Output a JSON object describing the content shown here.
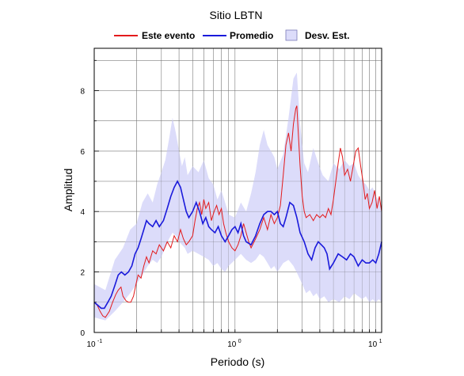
{
  "chart_data": {
    "type": "line",
    "title": "Sitio LBTN",
    "xlabel": "Periodo (s)",
    "ylabel": "Amplitud",
    "xscale": "log",
    "xlim": [
      0.1,
      11
    ],
    "ylim": [
      0,
      9.4
    ],
    "grid": true,
    "legend_position": "top",
    "x_tick_base": "10",
    "x_tick_labels": [
      {
        "value": 0.1,
        "exp": "-1"
      },
      {
        "value": 1,
        "exp": "0"
      },
      {
        "value": 10,
        "exp": "1"
      }
    ],
    "y_tick_labels": [
      {
        "value": 0,
        "label": "0"
      },
      {
        "value": 2,
        "label": "2"
      },
      {
        "value": 4,
        "label": "4"
      },
      {
        "value": 6,
        "label": "6"
      },
      {
        "value": 8,
        "label": "8"
      }
    ],
    "series": [
      {
        "name": "Este evento",
        "color": "#e31a1c",
        "points": [
          [
            0.1,
            1.0
          ],
          [
            0.105,
            0.9
          ],
          [
            0.11,
            0.7
          ],
          [
            0.115,
            0.55
          ],
          [
            0.12,
            0.5
          ],
          [
            0.128,
            0.7
          ],
          [
            0.135,
            1.0
          ],
          [
            0.142,
            1.25
          ],
          [
            0.148,
            1.4
          ],
          [
            0.155,
            1.5
          ],
          [
            0.16,
            1.2
          ],
          [
            0.168,
            1.05
          ],
          [
            0.175,
            1.0
          ],
          [
            0.182,
            1.0
          ],
          [
            0.19,
            1.2
          ],
          [
            0.198,
            1.6
          ],
          [
            0.205,
            1.9
          ],
          [
            0.215,
            1.8
          ],
          [
            0.225,
            2.2
          ],
          [
            0.235,
            2.5
          ],
          [
            0.245,
            2.3
          ],
          [
            0.26,
            2.7
          ],
          [
            0.275,
            2.6
          ],
          [
            0.29,
            2.9
          ],
          [
            0.31,
            2.7
          ],
          [
            0.33,
            3.0
          ],
          [
            0.35,
            2.8
          ],
          [
            0.37,
            3.2
          ],
          [
            0.39,
            3.0
          ],
          [
            0.41,
            3.4
          ],
          [
            0.43,
            3.1
          ],
          [
            0.45,
            2.9
          ],
          [
            0.47,
            3.0
          ],
          [
            0.5,
            3.2
          ],
          [
            0.52,
            3.7
          ],
          [
            0.54,
            4.1
          ],
          [
            0.56,
            4.3
          ],
          [
            0.58,
            3.9
          ],
          [
            0.6,
            4.4
          ],
          [
            0.62,
            4.1
          ],
          [
            0.65,
            4.3
          ],
          [
            0.68,
            3.7
          ],
          [
            0.71,
            4.0
          ],
          [
            0.74,
            4.2
          ],
          [
            0.77,
            3.9
          ],
          [
            0.8,
            4.1
          ],
          [
            0.83,
            3.6
          ],
          [
            0.86,
            3.3
          ],
          [
            0.9,
            3.0
          ],
          [
            0.95,
            2.8
          ],
          [
            1.0,
            2.7
          ],
          [
            1.05,
            2.9
          ],
          [
            1.1,
            3.2
          ],
          [
            1.15,
            3.6
          ],
          [
            1.2,
            3.3
          ],
          [
            1.25,
            3.0
          ],
          [
            1.3,
            2.8
          ],
          [
            1.4,
            3.1
          ],
          [
            1.5,
            3.4
          ],
          [
            1.6,
            3.8
          ],
          [
            1.7,
            3.4
          ],
          [
            1.8,
            3.9
          ],
          [
            1.9,
            3.6
          ],
          [
            2.0,
            3.8
          ],
          [
            2.1,
            4.2
          ],
          [
            2.2,
            5.2
          ],
          [
            2.3,
            6.2
          ],
          [
            2.4,
            6.6
          ],
          [
            2.5,
            6.0
          ],
          [
            2.6,
            6.9
          ],
          [
            2.7,
            7.4
          ],
          [
            2.75,
            7.5
          ],
          [
            2.8,
            6.8
          ],
          [
            2.9,
            5.5
          ],
          [
            3.0,
            4.5
          ],
          [
            3.1,
            4.0
          ],
          [
            3.2,
            3.8
          ],
          [
            3.4,
            3.9
          ],
          [
            3.6,
            3.7
          ],
          [
            3.8,
            3.9
          ],
          [
            4.0,
            3.8
          ],
          [
            4.2,
            3.9
          ],
          [
            4.4,
            3.8
          ],
          [
            4.6,
            4.1
          ],
          [
            4.8,
            3.9
          ],
          [
            5.0,
            4.4
          ],
          [
            5.2,
            5.0
          ],
          [
            5.4,
            5.6
          ],
          [
            5.6,
            6.1
          ],
          [
            5.8,
            5.8
          ],
          [
            6.0,
            5.2
          ],
          [
            6.3,
            5.4
          ],
          [
            6.6,
            5.0
          ],
          [
            6.9,
            5.5
          ],
          [
            7.2,
            6.0
          ],
          [
            7.5,
            6.1
          ],
          [
            7.8,
            5.5
          ],
          [
            8.1,
            5.0
          ],
          [
            8.4,
            4.4
          ],
          [
            8.7,
            4.6
          ],
          [
            9.0,
            4.1
          ],
          [
            9.4,
            4.3
          ],
          [
            9.8,
            4.7
          ],
          [
            10.2,
            4.1
          ],
          [
            10.6,
            4.5
          ],
          [
            11.0,
            4.0
          ]
        ]
      },
      {
        "name": "Promedio",
        "color": "#1a1adb",
        "points": [
          [
            0.1,
            1.0
          ],
          [
            0.106,
            0.9
          ],
          [
            0.112,
            0.8
          ],
          [
            0.118,
            0.8
          ],
          [
            0.125,
            1.0
          ],
          [
            0.132,
            1.2
          ],
          [
            0.14,
            1.55
          ],
          [
            0.148,
            1.9
          ],
          [
            0.156,
            2.0
          ],
          [
            0.165,
            1.9
          ],
          [
            0.175,
            2.0
          ],
          [
            0.185,
            2.2
          ],
          [
            0.195,
            2.6
          ],
          [
            0.205,
            2.8
          ],
          [
            0.215,
            3.1
          ],
          [
            0.225,
            3.4
          ],
          [
            0.235,
            3.7
          ],
          [
            0.245,
            3.6
          ],
          [
            0.26,
            3.5
          ],
          [
            0.275,
            3.7
          ],
          [
            0.29,
            3.5
          ],
          [
            0.31,
            3.7
          ],
          [
            0.33,
            4.1
          ],
          [
            0.35,
            4.5
          ],
          [
            0.37,
            4.8
          ],
          [
            0.39,
            5.0
          ],
          [
            0.41,
            4.8
          ],
          [
            0.43,
            4.4
          ],
          [
            0.45,
            4.0
          ],
          [
            0.47,
            3.8
          ],
          [
            0.5,
            4.0
          ],
          [
            0.53,
            4.3
          ],
          [
            0.56,
            4.0
          ],
          [
            0.59,
            3.6
          ],
          [
            0.62,
            3.8
          ],
          [
            0.65,
            3.5
          ],
          [
            0.68,
            3.4
          ],
          [
            0.72,
            3.3
          ],
          [
            0.76,
            3.5
          ],
          [
            0.8,
            3.2
          ],
          [
            0.85,
            3.0
          ],
          [
            0.9,
            3.2
          ],
          [
            0.95,
            3.4
          ],
          [
            1.0,
            3.5
          ],
          [
            1.05,
            3.3
          ],
          [
            1.1,
            3.6
          ],
          [
            1.15,
            3.2
          ],
          [
            1.2,
            3.0
          ],
          [
            1.3,
            2.9
          ],
          [
            1.4,
            3.2
          ],
          [
            1.5,
            3.6
          ],
          [
            1.6,
            3.9
          ],
          [
            1.7,
            4.0
          ],
          [
            1.8,
            4.0
          ],
          [
            1.9,
            3.9
          ],
          [
            2.0,
            4.0
          ],
          [
            2.1,
            3.6
          ],
          [
            2.2,
            3.5
          ],
          [
            2.3,
            3.8
          ],
          [
            2.45,
            4.3
          ],
          [
            2.6,
            4.2
          ],
          [
            2.75,
            3.8
          ],
          [
            2.9,
            3.3
          ],
          [
            3.1,
            3.0
          ],
          [
            3.3,
            2.6
          ],
          [
            3.5,
            2.4
          ],
          [
            3.7,
            2.8
          ],
          [
            3.9,
            3.0
          ],
          [
            4.1,
            2.9
          ],
          [
            4.3,
            2.8
          ],
          [
            4.5,
            2.6
          ],
          [
            4.7,
            2.1
          ],
          [
            5.0,
            2.3
          ],
          [
            5.4,
            2.6
          ],
          [
            5.8,
            2.5
          ],
          [
            6.2,
            2.4
          ],
          [
            6.6,
            2.6
          ],
          [
            7.0,
            2.5
          ],
          [
            7.5,
            2.2
          ],
          [
            8.0,
            2.4
          ],
          [
            8.5,
            2.3
          ],
          [
            9.0,
            2.3
          ],
          [
            9.5,
            2.4
          ],
          [
            10.0,
            2.3
          ],
          [
            10.5,
            2.6
          ],
          [
            11.0,
            3.0
          ]
        ]
      }
    ],
    "band": {
      "name": "Desv. Est.",
      "color": "#dcdcfa",
      "upper": [
        [
          0.1,
          1.6
        ],
        [
          0.12,
          1.4
        ],
        [
          0.14,
          2.4
        ],
        [
          0.16,
          2.8
        ],
        [
          0.18,
          3.4
        ],
        [
          0.2,
          3.6
        ],
        [
          0.22,
          4.3
        ],
        [
          0.24,
          4.6
        ],
        [
          0.26,
          4.3
        ],
        [
          0.28,
          4.9
        ],
        [
          0.3,
          5.3
        ],
        [
          0.32,
          5.7
        ],
        [
          0.34,
          6.4
        ],
        [
          0.36,
          7.1
        ],
        [
          0.38,
          6.6
        ],
        [
          0.4,
          6.0
        ],
        [
          0.42,
          5.5
        ],
        [
          0.44,
          5.8
        ],
        [
          0.46,
          5.2
        ],
        [
          0.5,
          5.5
        ],
        [
          0.55,
          5.3
        ],
        [
          0.6,
          5.7
        ],
        [
          0.65,
          5.1
        ],
        [
          0.7,
          4.9
        ],
        [
          0.75,
          4.4
        ],
        [
          0.8,
          4.7
        ],
        [
          0.85,
          4.3
        ],
        [
          0.9,
          3.9
        ],
        [
          1.0,
          3.8
        ],
        [
          1.1,
          4.3
        ],
        [
          1.2,
          4.0
        ],
        [
          1.3,
          4.6
        ],
        [
          1.4,
          5.3
        ],
        [
          1.5,
          6.2
        ],
        [
          1.6,
          6.7
        ],
        [
          1.7,
          6.2
        ],
        [
          1.8,
          6.0
        ],
        [
          1.9,
          5.8
        ],
        [
          2.0,
          5.4
        ],
        [
          2.2,
          5.9
        ],
        [
          2.4,
          7.1
        ],
        [
          2.6,
          8.4
        ],
        [
          2.75,
          8.6
        ],
        [
          2.9,
          6.9
        ],
        [
          3.1,
          5.6
        ],
        [
          3.3,
          5.3
        ],
        [
          3.6,
          6.1
        ],
        [
          3.9,
          5.6
        ],
        [
          4.2,
          5.2
        ],
        [
          4.6,
          5.0
        ],
        [
          5.0,
          5.6
        ],
        [
          5.5,
          5.4
        ],
        [
          6.0,
          5.7
        ],
        [
          6.5,
          5.5
        ],
        [
          7.0,
          5.6
        ],
        [
          7.5,
          5.2
        ],
        [
          8.0,
          5.0
        ],
        [
          8.5,
          4.9
        ],
        [
          9.0,
          4.7
        ],
        [
          9.5,
          4.8
        ],
        [
          10.0,
          4.5
        ],
        [
          10.5,
          4.4
        ],
        [
          11.0,
          4.1
        ]
      ],
      "lower": [
        [
          0.1,
          0.5
        ],
        [
          0.12,
          0.4
        ],
        [
          0.14,
          0.7
        ],
        [
          0.16,
          1.0
        ],
        [
          0.18,
          1.3
        ],
        [
          0.2,
          1.6
        ],
        [
          0.22,
          1.9
        ],
        [
          0.24,
          2.2
        ],
        [
          0.26,
          2.4
        ],
        [
          0.28,
          2.3
        ],
        [
          0.3,
          2.5
        ],
        [
          0.32,
          2.8
        ],
        [
          0.34,
          3.1
        ],
        [
          0.36,
          3.3
        ],
        [
          0.38,
          3.2
        ],
        [
          0.4,
          3.0
        ],
        [
          0.42,
          2.9
        ],
        [
          0.44,
          2.8
        ],
        [
          0.46,
          2.6
        ],
        [
          0.5,
          2.7
        ],
        [
          0.55,
          2.6
        ],
        [
          0.6,
          2.5
        ],
        [
          0.65,
          2.4
        ],
        [
          0.7,
          2.2
        ],
        [
          0.75,
          2.3
        ],
        [
          0.8,
          2.1
        ],
        [
          0.85,
          2.0
        ],
        [
          0.9,
          2.2
        ],
        [
          1.0,
          2.4
        ],
        [
          1.1,
          2.6
        ],
        [
          1.2,
          2.4
        ],
        [
          1.3,
          2.3
        ],
        [
          1.4,
          2.4
        ],
        [
          1.5,
          2.6
        ],
        [
          1.6,
          2.5
        ],
        [
          1.7,
          2.3
        ],
        [
          1.8,
          2.1
        ],
        [
          1.9,
          2.2
        ],
        [
          2.0,
          2.0
        ],
        [
          2.2,
          2.3
        ],
        [
          2.4,
          2.4
        ],
        [
          2.6,
          2.2
        ],
        [
          2.8,
          1.9
        ],
        [
          3.0,
          1.6
        ],
        [
          3.2,
          1.3
        ],
        [
          3.4,
          1.4
        ],
        [
          3.6,
          1.2
        ],
        [
          3.8,
          1.3
        ],
        [
          4.0,
          1.1
        ],
        [
          4.3,
          1.2
        ],
        [
          4.6,
          1.0
        ],
        [
          5.0,
          1.1
        ],
        [
          5.5,
          1.0
        ],
        [
          6.0,
          1.2
        ],
        [
          6.5,
          1.1
        ],
        [
          7.0,
          1.3
        ],
        [
          7.5,
          1.2
        ],
        [
          8.0,
          1.1
        ],
        [
          8.5,
          1.2
        ],
        [
          9.0,
          1.0
        ],
        [
          9.5,
          1.1
        ],
        [
          10.0,
          1.0
        ],
        [
          10.5,
          1.1
        ],
        [
          11.0,
          1.0
        ]
      ]
    }
  }
}
